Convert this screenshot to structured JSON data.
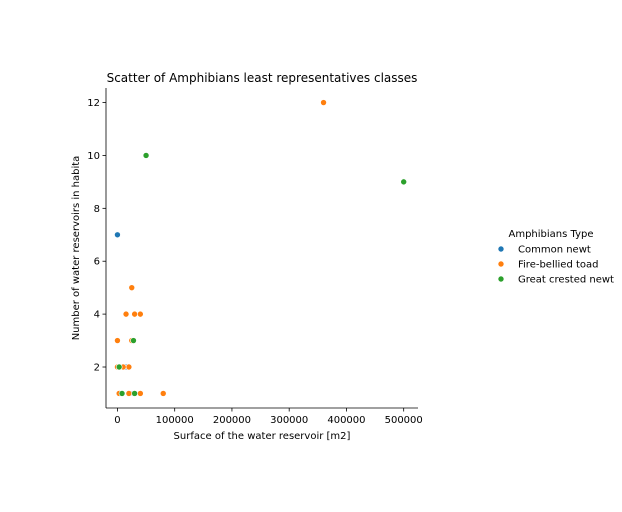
{
  "chart_data": {
    "type": "scatter",
    "title": "Scatter of Amphibians least representatives classes",
    "xlabel": "Surface of the water reservoir [m2]",
    "ylabel": "Number of water reservoirs in habita",
    "xlim": [
      -20000,
      525000
    ],
    "ylim": [
      0.45,
      12.55
    ],
    "x_ticks": [
      0,
      100000,
      200000,
      300000,
      400000,
      500000
    ],
    "y_ticks": [
      2,
      4,
      6,
      8,
      10,
      12
    ],
    "grid": false,
    "legend": {
      "title": "Amphibians Type",
      "placement": "outside-right"
    },
    "series": [
      {
        "name": "Common newt",
        "color": "#1f77b4",
        "x": [
          0,
          15000,
          28000,
          5000,
          0
        ],
        "y": [
          7,
          2,
          1,
          1,
          2
        ]
      },
      {
        "name": "Fire-bellied toad",
        "color": "#ff7f0e",
        "x": [
          360000,
          25000,
          15000,
          30000,
          40000,
          0,
          25000,
          20000,
          0,
          10000,
          20000,
          40000,
          80000,
          3000
        ],
        "y": [
          12,
          5,
          4,
          4,
          4,
          3,
          3,
          2,
          2,
          2,
          1,
          1,
          1,
          1
        ]
      },
      {
        "name": "Great crested newt",
        "color": "#2ca02c",
        "x": [
          50000,
          500000,
          28000,
          3000,
          30000,
          8000
        ],
        "y": [
          10,
          9,
          3,
          2,
          1,
          1
        ]
      }
    ]
  }
}
